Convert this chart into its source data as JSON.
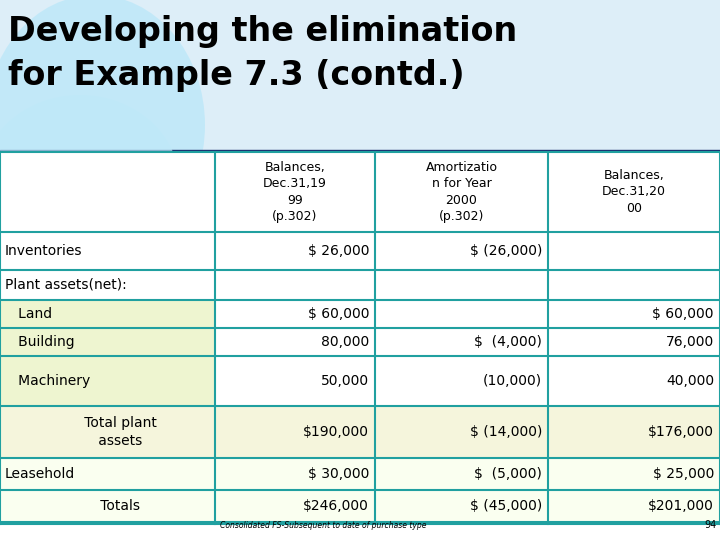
{
  "title_line1": "Developing the elimination",
  "title_line2": "for Example 7.3 (contd.)",
  "table_border_color": "#20a0a0",
  "col_headers": [
    "Balances,\nDec.31,19\n99\n(p.302)",
    "Amortizatio\nn for Year\n2000\n(p.302)",
    "Balances,\nDec.31,20\n00"
  ],
  "rows": [
    {
      "label": "Inventories",
      "label_align": "left",
      "col1": "$ 26,000",
      "col2": "$ (26,000)",
      "col3": "",
      "bg": "#ffffff",
      "label_bg": "#ffffff"
    },
    {
      "label": "Plant assets(net):",
      "label_align": "left",
      "col1": "",
      "col2": "",
      "col3": "",
      "bg": "#ffffff",
      "label_bg": "#ffffff"
    },
    {
      "label": "   Land",
      "label_align": "left",
      "col1": "$ 60,000",
      "col2": "",
      "col3": "$ 60,000",
      "bg": "#ffffff",
      "label_bg": "#eef5d0"
    },
    {
      "label": "   Building",
      "label_align": "left",
      "col1": "80,000",
      "col2": "$  (4,000)",
      "col3": "76,000",
      "bg": "#ffffff",
      "label_bg": "#eef5d0"
    },
    {
      "label": "   Machinery",
      "label_align": "left",
      "col1": "50,000",
      "col2": "(10,000)",
      "col3": "40,000",
      "bg": "#ffffff",
      "label_bg": "#eef5d0"
    },
    {
      "label": "      Total plant\n      assets",
      "label_align": "center",
      "col1": "$190,000",
      "col2": "$ (14,000)",
      "col3": "$176,000",
      "bg": "#f5f5dc",
      "label_bg": "#f5f5dc"
    },
    {
      "label": "Leasehold",
      "label_align": "left",
      "col1": "$ 30,000",
      "col2": "$  (5,000)",
      "col3": "$ 25,000",
      "bg": "#fafff0",
      "label_bg": "#fafff0"
    },
    {
      "label": "      Totals",
      "label_align": "center",
      "col1": "$246,000",
      "col2": "$ (45,000)",
      "col3": "$201,000",
      "bg": "#fafff0",
      "label_bg": "#fafff0"
    }
  ],
  "footer_text": "Consolidated FS-Subsequent to date of purchase type",
  "footer_page": "94",
  "bg_color": "#ffffff",
  "title_bg_color": "#ffffff",
  "circle_color": "#c8e8f5",
  "divider_color": "#1a3a6e",
  "col_bounds": [
    0,
    215,
    375,
    548,
    720
  ],
  "row_tops": [
    388,
    308,
    270,
    240,
    212,
    184,
    134,
    82,
    50,
    18
  ]
}
